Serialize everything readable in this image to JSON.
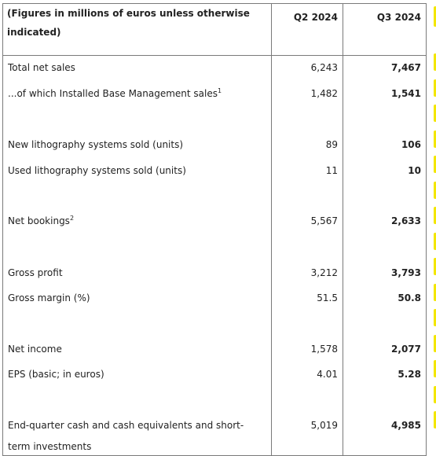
{
  "header": {
    "label": "(Figures in millions of euros unless otherwise indicated)",
    "col_q2": "Q2 2024",
    "col_q3": "Q3 2024"
  },
  "rows": [
    {
      "label": "Total net sales",
      "sup": "",
      "q2": "6,243",
      "q3": "7,467"
    },
    {
      "label": "...of which Installed Base Management sales",
      "sup": "1",
      "q2": "1,482",
      "q3": "1,541"
    },
    {
      "label": "New lithography systems sold (units)",
      "sup": "",
      "q2": "89",
      "q3": "106"
    },
    {
      "label": "Used lithography systems sold (units)",
      "sup": "",
      "q2": "11",
      "q3": "10"
    },
    {
      "label": "Net bookings",
      "sup": "2",
      "q2": "5,567",
      "q3": "2,633"
    },
    {
      "label": "Gross profit",
      "sup": "",
      "q2": "3,212",
      "q3": "3,793"
    },
    {
      "label": "Gross margin (%)",
      "sup": "",
      "q2": "51.5",
      "q3": "50.8"
    },
    {
      "label": "Net income",
      "sup": "",
      "q2": "1,578",
      "q3": "2,077"
    },
    {
      "label": "EPS (basic; in euros)",
      "sup": "",
      "q2": "4.01",
      "q3": "5.28"
    },
    {
      "label_line1": "End-quarter cash and cash equivalents and short-",
      "label_line2": "term investments",
      "q2": "5,019",
      "q3": "4,985"
    }
  ],
  "colors": {
    "marker": "#f3e600",
    "border": "#7a7a7a",
    "text": "#222222"
  }
}
